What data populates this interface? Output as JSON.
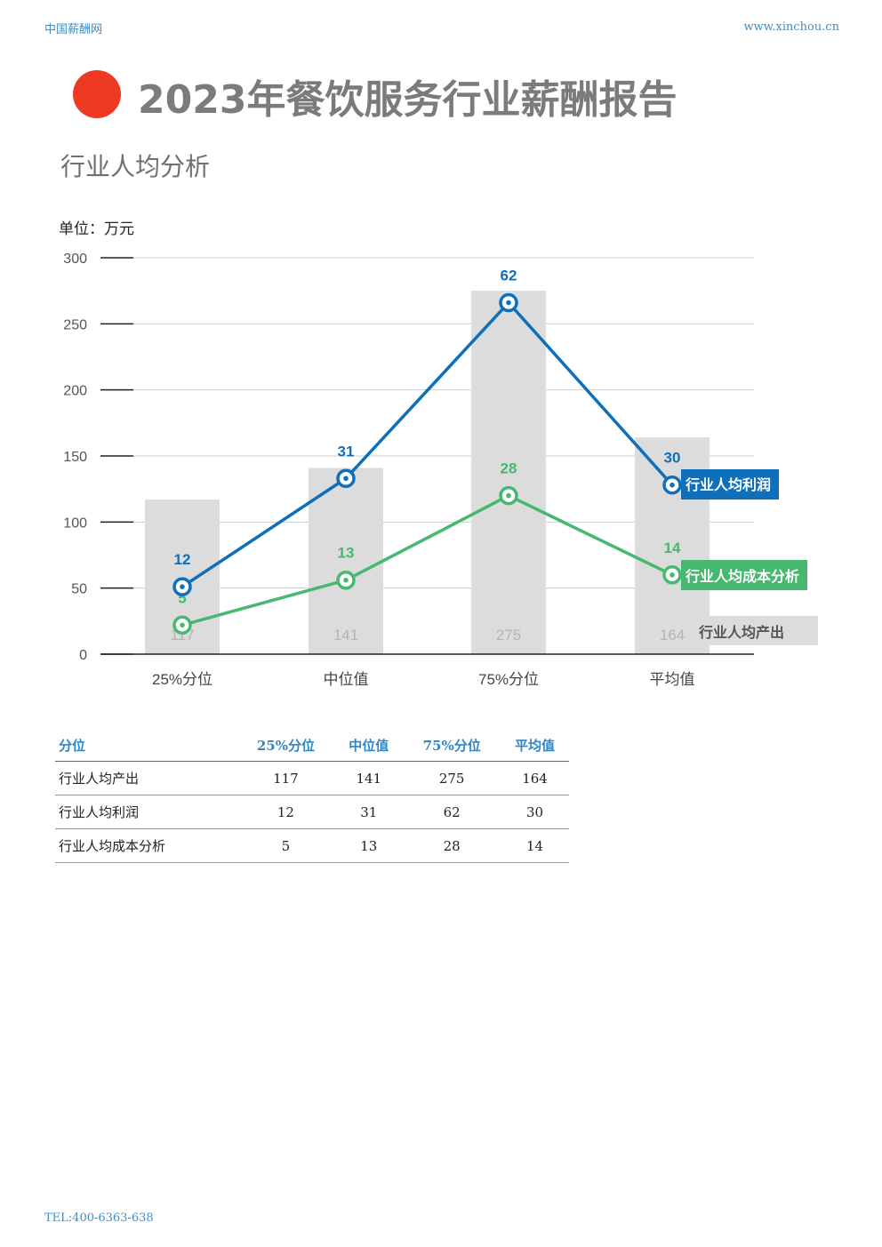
{
  "header": {
    "site_name": "中国薪酬网",
    "site_url": "www.xinchou.cn"
  },
  "report_title": "2023年餐饮服务行业薪酬报告",
  "section_title": "行业人均分析",
  "unit_label": "单位：万元",
  "colors": {
    "accent_dot": "#ee3a22",
    "profit": "#0e6fbb",
    "cost": "#47b86f",
    "output_bar": "#dcdcdc"
  },
  "chart_data": {
    "type": "bar",
    "categories": [
      "25%分位",
      "中位值",
      "75%分位",
      "平均值"
    ],
    "ylim": [
      0,
      300
    ],
    "yticks": [
      0,
      50,
      100,
      150,
      200,
      250,
      300
    ],
    "grid": true,
    "series": [
      {
        "name": "行业人均产出",
        "kind": "bar",
        "values": [
          117,
          141,
          275,
          164
        ]
      },
      {
        "name": "行业人均利润",
        "kind": "line",
        "values": [
          12,
          31,
          62,
          30
        ],
        "plotted_values": [
          51,
          133,
          266,
          128
        ]
      },
      {
        "name": "行业人均成本分析",
        "kind": "line",
        "values": [
          5,
          13,
          28,
          14
        ],
        "plotted_values": [
          22,
          56,
          120,
          60
        ]
      }
    ],
    "legend_placement": "right"
  },
  "table": {
    "headers": [
      "分位",
      "25%分位",
      "中位值",
      "75%分位",
      "平均值"
    ],
    "rows": [
      [
        "行业人均产出",
        "117",
        "141",
        "275",
        "164"
      ],
      [
        "行业人均利润",
        "12",
        "31",
        "62",
        "30"
      ],
      [
        "行业人均成本分析",
        "5",
        "13",
        "28",
        "14"
      ]
    ]
  },
  "footer": {
    "tel": "TEL:400-6363-638"
  }
}
